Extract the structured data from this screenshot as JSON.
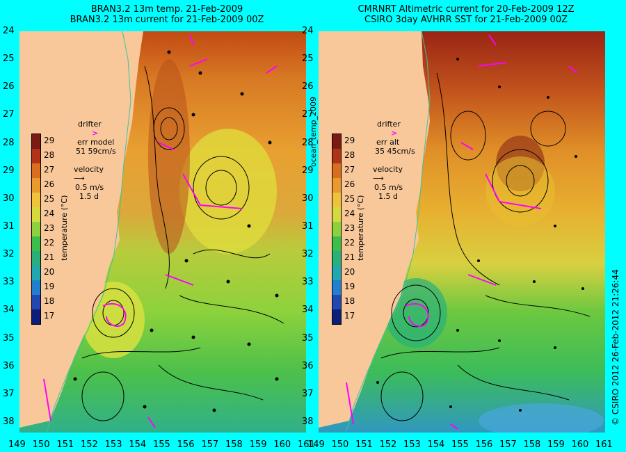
{
  "left_panel": {
    "title_line1": "BRAN3.2 13m temp. 21-Feb-2009",
    "title_line2": "BRAN3.2 13m current for 21-Feb-2009 00Z",
    "err_label": "err model",
    "err_value": "51 59cm/s"
  },
  "right_panel": {
    "title_line1": "CMRNRT Altimetric current for 20-Feb-2009 12Z",
    "title_line2": "CSIRO 3day AVHRR SST for 21-Feb-2009 00Z",
    "err_label": "err alt",
    "err_value": "35 45cm/s"
  },
  "legend": {
    "drifter_label": "drifter",
    "velocity_label": "velocity",
    "velocity_scale": "0.5 m/s",
    "velocity_time": "1.5 d"
  },
  "colorbar": {
    "label": "temperature (°C)",
    "ticks": [
      "29",
      "28",
      "27",
      "26",
      "25",
      "24",
      "23",
      "22",
      "21",
      "20",
      "19",
      "18",
      "17"
    ],
    "colors": [
      "#7a1a12",
      "#b03318",
      "#d86e1e",
      "#e89a2c",
      "#f0c23a",
      "#d4da3c",
      "#8cd23c",
      "#3cbf4a",
      "#28b07a",
      "#20a8b0",
      "#2080d0",
      "#2048b0",
      "#0a1e7a"
    ]
  },
  "lat_ticks": [
    "24",
    "25",
    "26",
    "27",
    "28",
    "29",
    "30",
    "31",
    "32",
    "33",
    "34",
    "35",
    "36",
    "37",
    "38"
  ],
  "lon_ticks": [
    "149",
    "150",
    "151",
    "152",
    "153",
    "154",
    "155",
    "156",
    "157",
    "158",
    "159",
    "160",
    "161"
  ],
  "side_label": "ocean_temp_2009",
  "credit": "© CSIRO 2012  26-Feb-2012 21:26:44",
  "colors": {
    "background": "#00ffff",
    "land": "#f8c89a",
    "drifter": "#ff00ff",
    "arrow": "#000000"
  }
}
